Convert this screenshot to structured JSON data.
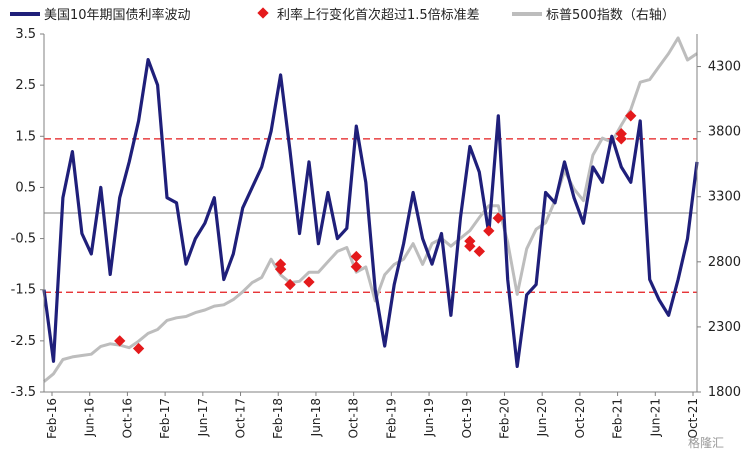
{
  "chart_data": {
    "type": "line",
    "legend": {
      "placement": "top",
      "items": [
        {
          "label": "美国10年期国债利率波动",
          "marker": "line",
          "color": "#1f1f7a"
        },
        {
          "label": "利率上行变化首次超过1.5倍标准差",
          "marker": "diamond",
          "color": "#e41a1c"
        },
        {
          "label": "标普500指数（右轴）",
          "marker": "line",
          "color": "#bdbdbd"
        }
      ]
    },
    "x_axis": {
      "type": "date",
      "range": [
        "2016-01",
        "2021-10"
      ],
      "tick_labels": [
        "Feb-16",
        "Jun-16",
        "Oct-16",
        "Feb-17",
        "Jun-17",
        "Oct-17",
        "Feb-18",
        "Jun-18",
        "Oct-18",
        "Feb-19",
        "Jun-19",
        "Oct-19",
        "Feb-20",
        "Jun-20",
        "Oct-20",
        "Feb-21",
        "Jun-21",
        "Oct-21"
      ]
    },
    "y_left": {
      "range": [
        -3.5,
        3.5
      ],
      "ticks": [
        3.5,
        2.5,
        1.5,
        0.5,
        -0.5,
        -1.5,
        -2.5,
        -3.5
      ],
      "tick_labels": [
        "3.5",
        "2.5",
        "1.5",
        "0.5",
        "-0.5",
        "-1.5",
        "-2.5",
        "-3.5"
      ]
    },
    "y_right": {
      "range": [
        1800,
        4550
      ],
      "ticks": [
        1800,
        2300,
        2800,
        3300,
        3800,
        4300
      ],
      "tick_labels": [
        "1800",
        "2300",
        "2800",
        "3300",
        "3800",
        "4300"
      ]
    },
    "reference_lines": [
      {
        "axis": "left",
        "value": 1.45,
        "style": "dashed",
        "color": "#e41a1c"
      },
      {
        "axis": "left",
        "value": -1.55,
        "style": "dashed",
        "color": "#e41a1c"
      },
      {
        "axis": "left",
        "value": 0,
        "style": "solid",
        "color": "#808080"
      }
    ],
    "series": [
      {
        "name": "美国10年期国债利率波动",
        "axis": "left",
        "color": "#1f1f7a",
        "x": [
          "2016-01",
          "2016-02",
          "2016-03",
          "2016-04",
          "2016-05",
          "2016-06",
          "2016-07",
          "2016-08",
          "2016-09",
          "2016-10",
          "2016-11",
          "2016-12",
          "2017-01",
          "2017-02",
          "2017-03",
          "2017-04",
          "2017-05",
          "2017-06",
          "2017-07",
          "2017-08",
          "2017-09",
          "2017-10",
          "2017-11",
          "2017-12",
          "2018-01",
          "2018-02",
          "2018-03",
          "2018-04",
          "2018-05",
          "2018-06",
          "2018-07",
          "2018-08",
          "2018-09",
          "2018-10",
          "2018-11",
          "2018-12",
          "2019-01",
          "2019-02",
          "2019-03",
          "2019-04",
          "2019-05",
          "2019-06",
          "2019-07",
          "2019-08",
          "2019-09",
          "2019-10",
          "2019-11",
          "2019-12",
          "2020-01",
          "2020-02",
          "2020-03",
          "2020-04",
          "2020-05",
          "2020-06",
          "2020-07",
          "2020-08",
          "2020-09",
          "2020-10",
          "2020-11",
          "2020-12",
          "2021-01",
          "2021-02",
          "2021-03",
          "2021-04",
          "2021-05",
          "2021-06",
          "2021-07",
          "2021-08",
          "2021-09",
          "2021-10"
        ],
        "y": [
          -1.5,
          -2.9,
          0.3,
          1.2,
          -0.4,
          -0.8,
          0.5,
          -1.2,
          0.3,
          1.0,
          1.8,
          3.0,
          2.5,
          0.3,
          0.2,
          -1.0,
          -0.5,
          -0.2,
          0.3,
          -1.3,
          -0.8,
          0.1,
          0.5,
          0.9,
          1.6,
          2.7,
          1.2,
          -0.4,
          1.0,
          -0.6,
          0.4,
          -0.5,
          -0.3,
          1.7,
          0.6,
          -1.5,
          -2.6,
          -1.4,
          -0.6,
          0.4,
          -0.5,
          -1.0,
          -0.4,
          -2.0,
          -0.1,
          1.3,
          0.8,
          -0.4,
          1.9,
          -1.3,
          -3.0,
          -1.6,
          -1.4,
          0.4,
          0.2,
          1.0,
          0.3,
          -0.2,
          0.9,
          0.6,
          1.5,
          0.9,
          0.6,
          1.8,
          -1.3,
          -1.7,
          -2.0,
          -1.3,
          -0.5,
          1.0
        ]
      },
      {
        "name": "标普500指数（右轴）",
        "axis": "right",
        "color": "#bdbdbd",
        "x": [
          "2016-01",
          "2016-02",
          "2016-03",
          "2016-04",
          "2016-05",
          "2016-06",
          "2016-07",
          "2016-08",
          "2016-09",
          "2016-10",
          "2016-11",
          "2016-12",
          "2017-01",
          "2017-02",
          "2017-03",
          "2017-04",
          "2017-05",
          "2017-06",
          "2017-07",
          "2017-08",
          "2017-09",
          "2017-10",
          "2017-11",
          "2017-12",
          "2018-01",
          "2018-02",
          "2018-03",
          "2018-04",
          "2018-05",
          "2018-06",
          "2018-07",
          "2018-08",
          "2018-09",
          "2018-10",
          "2018-11",
          "2018-12",
          "2019-01",
          "2019-02",
          "2019-03",
          "2019-04",
          "2019-05",
          "2019-06",
          "2019-07",
          "2019-08",
          "2019-09",
          "2019-10",
          "2019-11",
          "2019-12",
          "2020-01",
          "2020-02",
          "2020-03",
          "2020-04",
          "2020-05",
          "2020-06",
          "2020-07",
          "2020-08",
          "2020-09",
          "2020-10",
          "2020-11",
          "2020-12",
          "2021-01",
          "2021-02",
          "2021-03",
          "2021-04",
          "2021-05",
          "2021-06",
          "2021-07",
          "2021-08",
          "2021-09",
          "2021-10"
        ],
        "y": [
          1880,
          1940,
          2050,
          2070,
          2080,
          2090,
          2150,
          2170,
          2160,
          2140,
          2190,
          2250,
          2280,
          2350,
          2370,
          2380,
          2410,
          2430,
          2460,
          2470,
          2510,
          2570,
          2640,
          2680,
          2820,
          2700,
          2640,
          2650,
          2720,
          2720,
          2800,
          2880,
          2910,
          2720,
          2760,
          2500,
          2700,
          2780,
          2820,
          2940,
          2780,
          2940,
          2980,
          2920,
          2980,
          3040,
          3140,
          3230,
          3230,
          2950,
          2550,
          2900,
          3050,
          3100,
          3270,
          3500,
          3360,
          3270,
          3620,
          3750,
          3720,
          3850,
          3970,
          4180,
          4200,
          4300,
          4400,
          4520,
          4350,
          4400
        ]
      },
      {
        "name": "利率上行变化首次超过1.5倍标准差",
        "type": "scatter",
        "axis": "left",
        "color": "#e41a1c",
        "x": [
          "2016-09",
          "2016-11",
          "2018-02",
          "2018-02",
          "2018-03",
          "2018-05",
          "2018-10",
          "2018-10",
          "2019-10",
          "2019-10",
          "2019-11",
          "2019-12",
          "2020-01",
          "2021-02",
          "2021-02",
          "2021-03"
        ],
        "y": [
          -2.5,
          -2.65,
          -1.1,
          -1.0,
          -1.4,
          -1.35,
          -0.85,
          -1.05,
          -0.55,
          -0.65,
          -0.75,
          -0.35,
          -0.1,
          1.55,
          1.45,
          1.9
        ]
      }
    ]
  },
  "watermark": "格隆汇"
}
